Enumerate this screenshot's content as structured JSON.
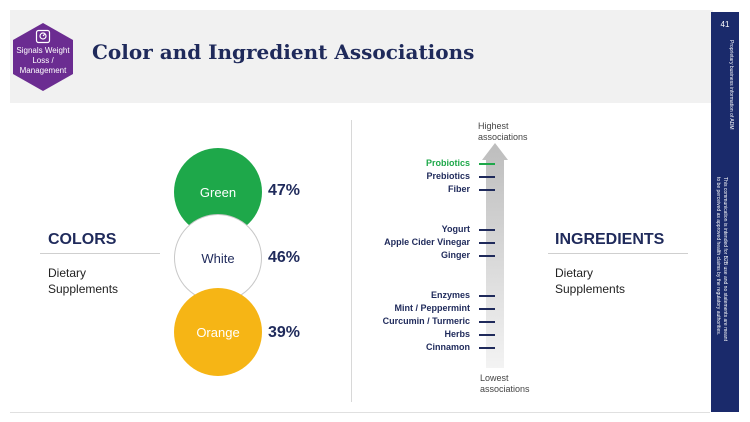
{
  "header": {
    "badge_text": "Signals Weight Loss / Management",
    "title": "Color and Ingredient Associations"
  },
  "sidebar": {
    "page_number": "41",
    "notice_1": "Proprietary business information of ADM",
    "notice_2": "This communication is intended for B2B use and no statements are meant",
    "notice_3": "to be perceived as approved health claims by the regulatory authorities."
  },
  "colors_section": {
    "heading": "COLORS",
    "subtitle": "Dietary Supplements",
    "items": [
      {
        "label": "Green",
        "percent": "47%",
        "color": "#1ea84a",
        "text_color": "#ffffff"
      },
      {
        "label": "White",
        "percent": "46%",
        "color": "#ffffff",
        "text_color": "#1f2a5b"
      },
      {
        "label": "Orange",
        "percent": "39%",
        "color": "#f6b515",
        "text_color": "#ffffff"
      }
    ]
  },
  "ingredients_section": {
    "heading": "INGREDIENTS",
    "subtitle": "Dietary Supplements",
    "top_label": "Highest associations",
    "bottom_label": "Lowest associations",
    "items": [
      {
        "label": "Probiotics",
        "highlight": true
      },
      {
        "label": "Prebiotics",
        "highlight": false
      },
      {
        "label": "Fiber",
        "highlight": false
      },
      {
        "label": "Yogurt",
        "highlight": false
      },
      {
        "label": "Apple Cider Vinegar",
        "highlight": false
      },
      {
        "label": "Ginger",
        "highlight": false
      },
      {
        "label": "Enzymes",
        "highlight": false
      },
      {
        "label": "Mint / Peppermint",
        "highlight": false
      },
      {
        "label": "Curcumin / Turmeric",
        "highlight": false
      },
      {
        "label": "Herbs",
        "highlight": false
      },
      {
        "label": "Cinnamon",
        "highlight": false
      }
    ]
  },
  "theme": {
    "navy": "#1f2a5b",
    "badge_purple": "#6b2c91",
    "highlight_green": "#1ea84a"
  }
}
